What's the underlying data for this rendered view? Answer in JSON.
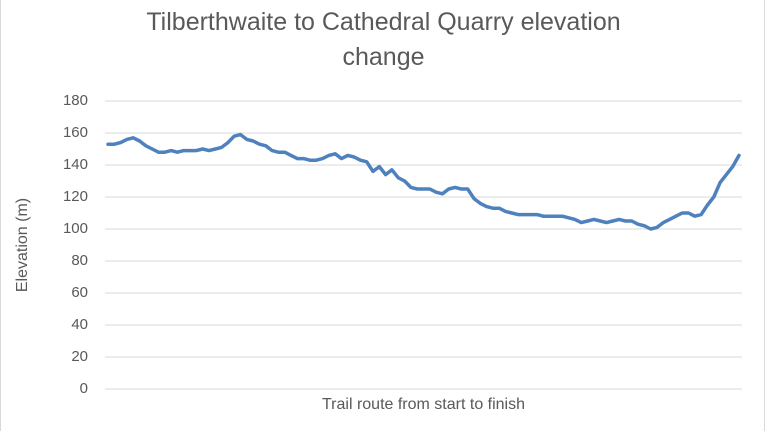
{
  "chart_data": {
    "type": "line",
    "title": "Tilberthwaite to Cathedral Quarry elevation change",
    "title_lines": [
      "Tilberthwaite to Cathedral Quarry elevation",
      "change"
    ],
    "xlabel": "Trail route from start to finish",
    "ylabel": "Elevation (m)",
    "ylim": [
      0,
      180
    ],
    "yticks": [
      0,
      20,
      40,
      60,
      80,
      100,
      120,
      140,
      160,
      180
    ],
    "grid": true,
    "legend": "none",
    "series": [
      {
        "name": "Elevation",
        "color": "#4f81bd",
        "values": [
          153,
          153,
          154,
          156,
          157,
          155,
          152,
          150,
          148,
          148,
          149,
          148,
          149,
          149,
          149,
          150,
          149,
          150,
          151,
          154,
          158,
          159,
          156,
          155,
          153,
          152,
          149,
          148,
          148,
          146,
          144,
          144,
          143,
          143,
          144,
          146,
          147,
          144,
          146,
          145,
          143,
          142,
          136,
          139,
          134,
          137,
          132,
          130,
          126,
          125,
          125,
          125,
          123,
          122,
          125,
          126,
          125,
          125,
          119,
          116,
          114,
          113,
          113,
          111,
          110,
          109,
          109,
          109,
          109,
          108,
          108,
          108,
          108,
          107,
          106,
          104,
          105,
          106,
          105,
          104,
          105,
          106,
          105,
          105,
          103,
          102,
          100,
          101,
          104,
          106,
          108,
          110,
          110,
          108,
          109,
          115,
          120,
          129,
          134,
          139,
          146
        ]
      }
    ]
  },
  "axis": {
    "y_labels": [
      "180",
      "160",
      "140",
      "120",
      "100",
      "80",
      "60",
      "40",
      "20",
      "0"
    ]
  },
  "colors": {
    "line": "#4f81bd",
    "grid": "#d9d9d9",
    "text": "#595959"
  }
}
